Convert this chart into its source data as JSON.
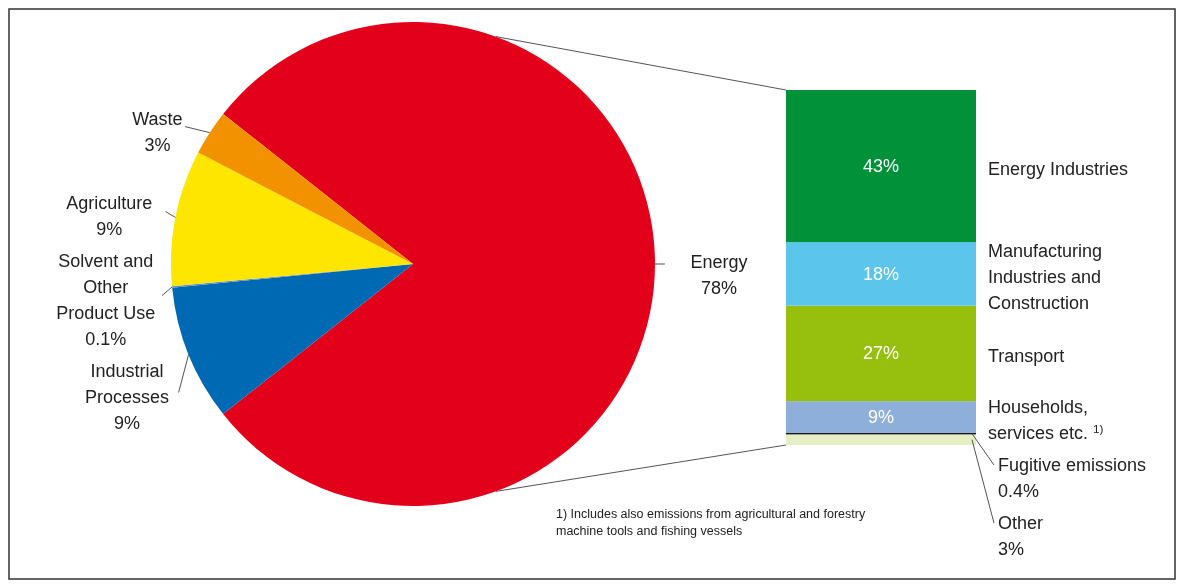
{
  "chart_data": [
    {
      "type": "pie",
      "categories": [
        "Energy",
        "Industrial Processes",
        "Solvent and Other Product Use",
        "Agriculture",
        "Waste"
      ],
      "values": [
        78,
        9,
        0.1,
        9,
        3
      ],
      "value_labels": [
        "78%",
        "9%",
        "0.1%",
        "9%",
        "3%"
      ],
      "colors": [
        "#e2001a",
        "#0069b4",
        "#5a8fc7",
        "#ffe600",
        "#f39200"
      ]
    },
    {
      "type": "bar",
      "stacked": true,
      "categories": [
        null
      ],
      "series": [
        {
          "name": "Other",
          "color": "#e6efc4",
          "values": [
            3
          ],
          "value_labels": [
            "3%"
          ]
        },
        {
          "name": "Fugitive emissions",
          "color": "#1a1a1a",
          "values": [
            0.4
          ],
          "value_labels": [
            "0.4%"
          ]
        },
        {
          "name": "Households, services etc. $^{1)}$",
          "color": "#8eafd9",
          "values": [
            9
          ],
          "value_labels": [
            "9%"
          ]
        },
        {
          "name": "Transport",
          "color": "#97bf0d",
          "values": [
            27
          ],
          "value_labels": [
            "27%"
          ]
        },
        {
          "name": "Manufacturing Industries and Construction",
          "color": "#5bc5eb",
          "values": [
            18
          ],
          "value_labels": [
            "18%"
          ]
        },
        {
          "name": "Energy Industries",
          "color": "#009139",
          "values": [
            43
          ],
          "value_labels": [
            "43%"
          ]
        }
      ],
      "annotations": [
        "1) Includes also emissions from agricultural and forestry machine tools and fishing vessels"
      ]
    }
  ]
}
